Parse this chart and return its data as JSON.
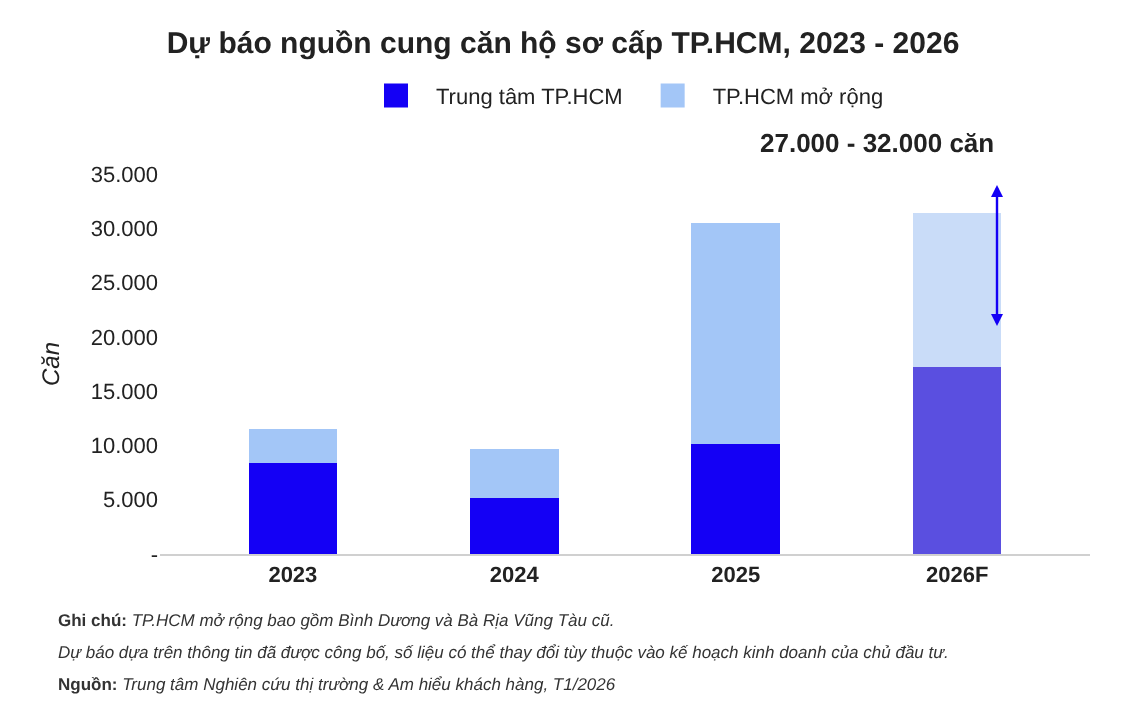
{
  "chart_data": {
    "type": "bar",
    "title": "Dự báo nguồn cung căn hộ sơ cấp TP.HCM, 2023 - 2026",
    "ylabel": "Căn",
    "stacked": true,
    "legend": "top",
    "categories": [
      "2023",
      "2024",
      "2025",
      "2026F"
    ],
    "series": [
      {
        "name": "Trung tâm TP.HCM",
        "colors": [
          "#1400f5",
          "#1400f5",
          "#1400f5",
          "#5a4fe0"
        ],
        "values": [
          8400,
          5200,
          10100,
          17200
        ]
      },
      {
        "name": "TP.HCM mở rộng",
        "colors": [
          "#a3c6f7",
          "#a3c6f7",
          "#a3c6f7",
          "#c9dcf8"
        ],
        "values": [
          3100,
          4500,
          20400,
          14200
        ]
      }
    ],
    "ylim": [
      0,
      35000
    ],
    "yticks": [
      {
        "value": 0,
        "label": "-"
      },
      {
        "value": 5000,
        "label": "5.000"
      },
      {
        "value": 10000,
        "label": "10.000"
      },
      {
        "value": 15000,
        "label": "15.000"
      },
      {
        "value": 20000,
        "label": "20.000"
      },
      {
        "value": 25000,
        "label": "25.000"
      },
      {
        "value": 30000,
        "label": "30.000"
      },
      {
        "value": 35000,
        "label": "35.000"
      }
    ],
    "annotations": [
      "27.000 - 32.000 căn",
      "Ghi chú: TP.HCM mở rộng bao gồm Bình Dương và Bà Rịa Vũng Tàu cũ.",
      "Dự báo dựa trên thông tin đã được công bố, số liệu có thể thay đổi tùy thuộc vào kế hoạch kinh doanh của chủ đầu tư.",
      "Nguồn: Trung tâm Nghiên cứu thị trường & Am hiểu khách hàng, T1/2026"
    ]
  }
}
